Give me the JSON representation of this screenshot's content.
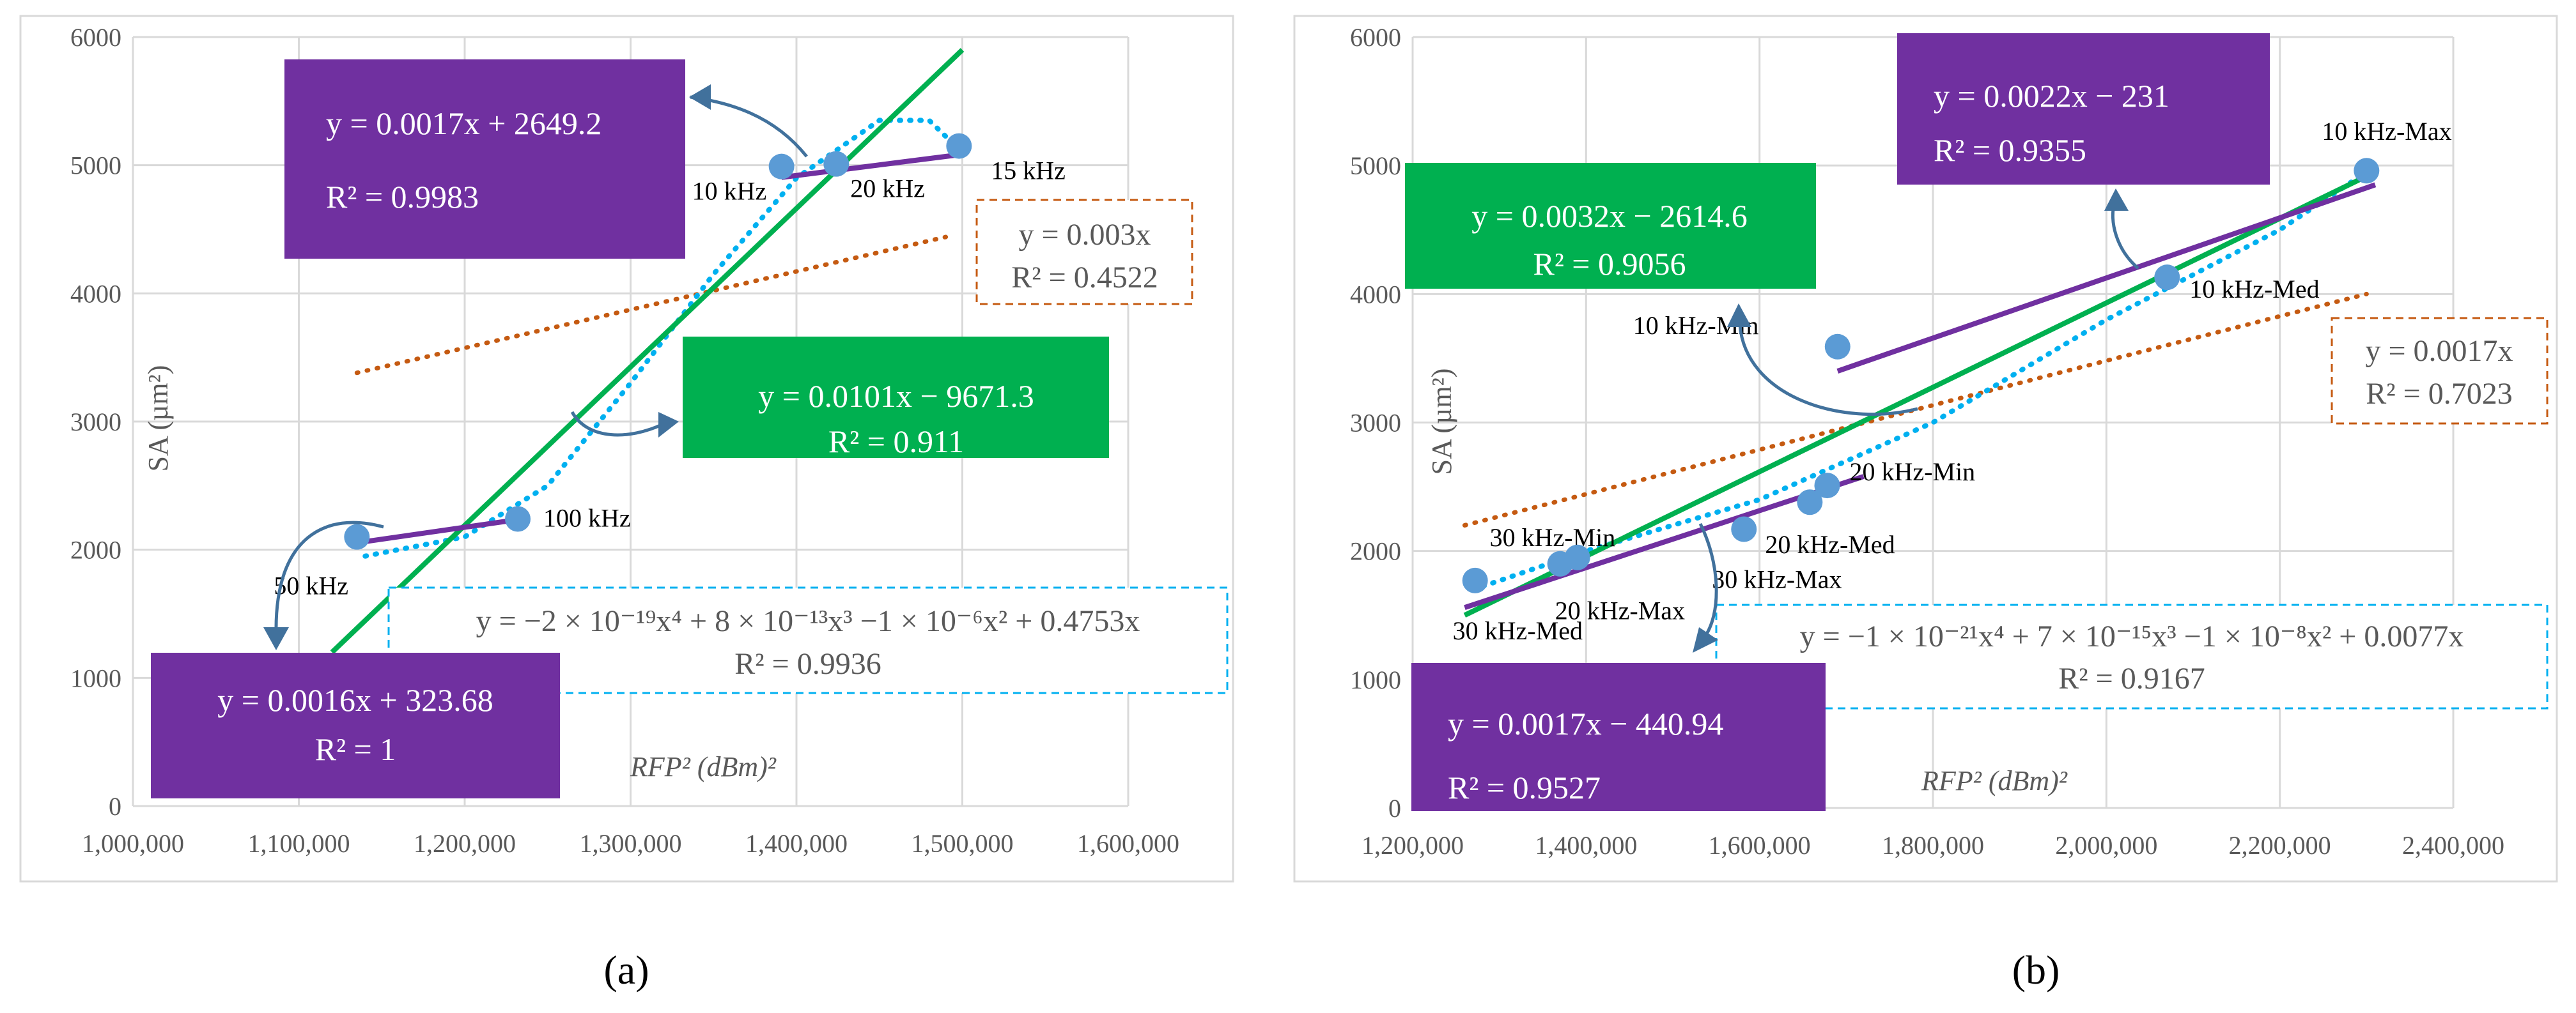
{
  "colors": {
    "purple": "#7030A0",
    "green": "#00B050",
    "dotted_blue": "#00B0F0",
    "dotted_orange": "#C55A11",
    "point": "#5B9BD5",
    "grid": "#D9D9D9",
    "arrow": "#41719C"
  },
  "chart_data": [
    {
      "panel_label": "(a)",
      "type": "scatter",
      "ylabel": "SA (µm²)",
      "xlabel": "RFP² (dBm)²",
      "xlim": [
        1000000,
        1600000
      ],
      "ylim": [
        0,
        6000
      ],
      "xticks": [
        "1,000,000",
        "1,100,000",
        "1,200,000",
        "1,300,000",
        "1,400,000",
        "1,500,000",
        "1,600,000"
      ],
      "yticks": [
        "0",
        "1000",
        "2000",
        "3000",
        "4000",
        "5000",
        "6000"
      ],
      "points": [
        {
          "x": 1135000,
          "y": 2100,
          "label": "50 kHz"
        },
        {
          "x": 1232000,
          "y": 2240,
          "label": "100 kHz"
        },
        {
          "x": 1391000,
          "y": 4990,
          "label": "10 kHz"
        },
        {
          "x": 1424000,
          "y": 5010,
          "label": "20 kHz"
        },
        {
          "x": 1498000,
          "y": 5150,
          "label": "15 kHz"
        }
      ],
      "fits": {
        "low_linear": {
          "line1": "y = 0.0016x + 323.68",
          "line2": "R² = 1",
          "x": [
            1135000,
            1232000
          ],
          "y": [
            2054,
            2235
          ]
        },
        "high_linear": {
          "line1": "y = 0.0017x + 2649.2",
          "line2": "R² = 0.9983",
          "x": [
            1391000,
            1500000
          ],
          "y": [
            4905,
            5085
          ]
        },
        "all_linear": {
          "line1": "y = 0.0101x − 9671.3",
          "line2": "R² = 0.911",
          "x": [
            1120000,
            1500000
          ],
          "y": [
            1200,
            5900
          ]
        },
        "proportional": {
          "line1": "y = 0.003x",
          "line2": "R² = 0.4522",
          "x": [
            1135000,
            1490000
          ],
          "y": [
            3380,
            4440
          ]
        },
        "polynomial": {
          "line1": "y = −2 × 10⁻¹⁹x⁴ + 8 × 10⁻¹³x³ −1 × 10⁻⁶x² + 0.4753x",
          "line2": "R² = 0.9936",
          "curve": [
            [
              1140000,
              1950
            ],
            [
              1200000,
              2100
            ],
            [
              1250000,
              2500
            ],
            [
              1300000,
              3300
            ],
            [
              1350000,
              4150
            ],
            [
              1400000,
              4900
            ],
            [
              1450000,
              5350
            ],
            [
              1480000,
              5350
            ],
            [
              1500000,
              5100
            ]
          ]
        }
      }
    },
    {
      "panel_label": "(b)",
      "type": "scatter",
      "ylabel": "SA (µm²)",
      "xlabel": "RFP² (dBm)²",
      "xlim": [
        1200000,
        2400000
      ],
      "ylim": [
        0,
        6000
      ],
      "xticks": [
        "1,200,000",
        "1,400,000",
        "1,600,000",
        "1,800,000",
        "2,000,000",
        "2,200,000",
        "2,400,000"
      ],
      "yticks": [
        "0",
        "1000",
        "2000",
        "3000",
        "4000",
        "5000",
        "6000"
      ],
      "points": [
        {
          "x": 1272000,
          "y": 1770,
          "label": "30 kHz-Med"
        },
        {
          "x": 1370000,
          "y": 1900,
          "label": "30 kHz-Min"
        },
        {
          "x": 1390000,
          "y": 1950,
          "label": "20 kHz-Max"
        },
        {
          "x": 1582000,
          "y": 2170,
          "label": "30 kHz-Max"
        },
        {
          "x": 1658000,
          "y": 2380,
          "label": "20 kHz-Med"
        },
        {
          "x": 1678000,
          "y": 2510,
          "label": "20 kHz-Min"
        },
        {
          "x": 1690000,
          "y": 3590,
          "label": "10 kHz-Min"
        },
        {
          "x": 2070000,
          "y": 4130,
          "label": "10 kHz-Med"
        },
        {
          "x": 2300000,
          "y": 4960,
          "label": "10 kHz-Max"
        }
      ],
      "fits": {
        "low_linear": {
          "line1": "y = 0.0017x − 440.94",
          "line2": "R² = 0.9527",
          "x": [
            1260000,
            1720000
          ],
          "y": [
            1560,
            2580
          ]
        },
        "high_linear": {
          "line1": "y = 0.0022x − 231",
          "line2": "R² = 0.9355",
          "x": [
            1690000,
            2310000
          ],
          "y": [
            3400,
            4850
          ]
        },
        "all_linear": {
          "line1": "y = 0.0032x − 2614.6",
          "line2": "R² = 0.9056",
          "x": [
            1260000,
            2310000
          ],
          "y": [
            1500,
            4950
          ]
        },
        "proportional": {
          "line1": "y = 0.0017x",
          "line2": "R² = 0.7023",
          "x": [
            1260000,
            2300000
          ],
          "y": [
            2200,
            4000
          ]
        },
        "polynomial": {
          "line1": "y = −1 × 10⁻²¹x⁴ + 7 × 10⁻¹⁵x³ −1 × 10⁻⁸x² + 0.0077x",
          "line2": "R² = 0.9167",
          "curve": [
            [
              1270000,
              1700
            ],
            [
              1400000,
              2000
            ],
            [
              1600000,
              2400
            ],
            [
              1800000,
              3000
            ],
            [
              2000000,
              3800
            ],
            [
              2200000,
              4500
            ],
            [
              2300000,
              4950
            ]
          ]
        }
      }
    }
  ]
}
